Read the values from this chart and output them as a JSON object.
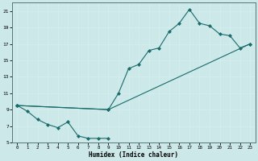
{
  "xlabel": "Humidex (Indice chaleur)",
  "bg_color": "#cce8e8",
  "grid_color": "#b0d8d8",
  "line_color": "#1a6b6b",
  "xlim": [
    -0.5,
    23.5
  ],
  "ylim": [
    5,
    22
  ],
  "xticks": [
    0,
    1,
    2,
    3,
    4,
    5,
    6,
    7,
    8,
    9,
    10,
    11,
    12,
    13,
    14,
    15,
    16,
    17,
    18,
    19,
    20,
    21,
    22,
    23
  ],
  "yticks": [
    5,
    7,
    9,
    11,
    13,
    15,
    17,
    19,
    21
  ],
  "line1_x": [
    0,
    1,
    2,
    3,
    4,
    5,
    6,
    7,
    8,
    9
  ],
  "line1_y": [
    9.5,
    8.8,
    7.8,
    7.2,
    6.8,
    7.5,
    5.8,
    5.5,
    5.5,
    5.5
  ],
  "line2_x": [
    0,
    9,
    23
  ],
  "line2_y": [
    9.5,
    9.0,
    17.0
  ],
  "line3_x": [
    0,
    9,
    10,
    11,
    12,
    13,
    14,
    15,
    16,
    17,
    18,
    19,
    20,
    21,
    22,
    23
  ],
  "line3_y": [
    9.5,
    9.0,
    11.0,
    14.0,
    14.5,
    16.2,
    16.5,
    18.5,
    19.5,
    21.2,
    19.5,
    19.2,
    18.2,
    18.0,
    16.5,
    17.0
  ]
}
